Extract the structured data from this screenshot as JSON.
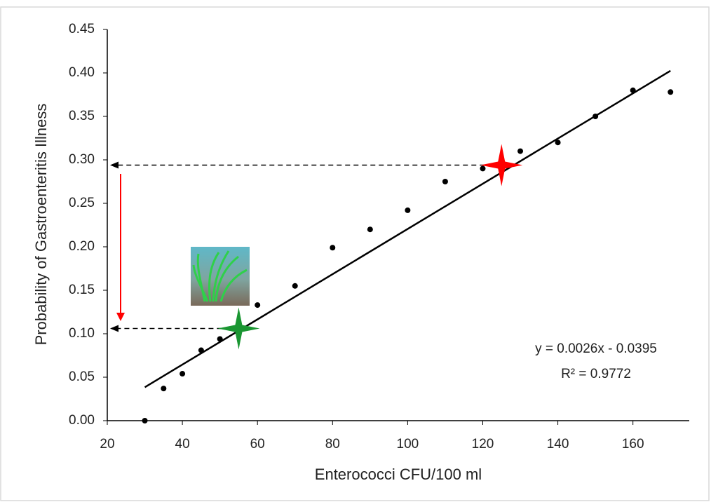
{
  "chart_data": {
    "type": "scatter",
    "x_label": "Enterococci CFU/100 ml",
    "y_label": "Probability of Gastroenteritis Illness",
    "x": [
      30,
      35,
      40,
      45,
      50,
      60,
      70,
      80,
      90,
      100,
      110,
      120,
      130,
      140,
      150,
      160,
      170
    ],
    "series": [
      {
        "color": "#000000",
        "values": [
          0.0,
          0.037,
          0.054,
          0.081,
          0.094,
          0.133,
          0.155,
          0.199,
          0.22,
          0.242,
          0.275,
          0.29,
          0.31,
          0.32,
          0.35,
          0.38,
          0.378
        ]
      }
    ],
    "trendline": {
      "slope": 0.0026,
      "intercept": -0.0395,
      "x": [
        30,
        170
      ],
      "color": "#000000"
    },
    "equation": "y = 0.0026x - 0.0395",
    "r_squared": "R² = 0.9772",
    "highlights": [
      {
        "x": 125,
        "y": 0.294,
        "color": "#ff0000"
      },
      {
        "x": 55,
        "y": 0.106,
        "color": "#1a9632"
      }
    ],
    "xlim": [
      20,
      175
    ],
    "xticks": [
      20,
      40,
      60,
      80,
      100,
      120,
      140,
      160
    ],
    "ylim": [
      0,
      0.45
    ],
    "yticks": [
      {
        "value": 0,
        "label": "0.00"
      },
      0.05,
      {
        "value": 0.1,
        "label": "0.10"
      },
      0.15,
      {
        "value": 0.2,
        "label": "0.20"
      },
      0.25,
      {
        "value": 0.3,
        "label": "0.30"
      },
      0.35,
      {
        "value": 0.4,
        "label": "0.40"
      },
      0.45
    ]
  }
}
